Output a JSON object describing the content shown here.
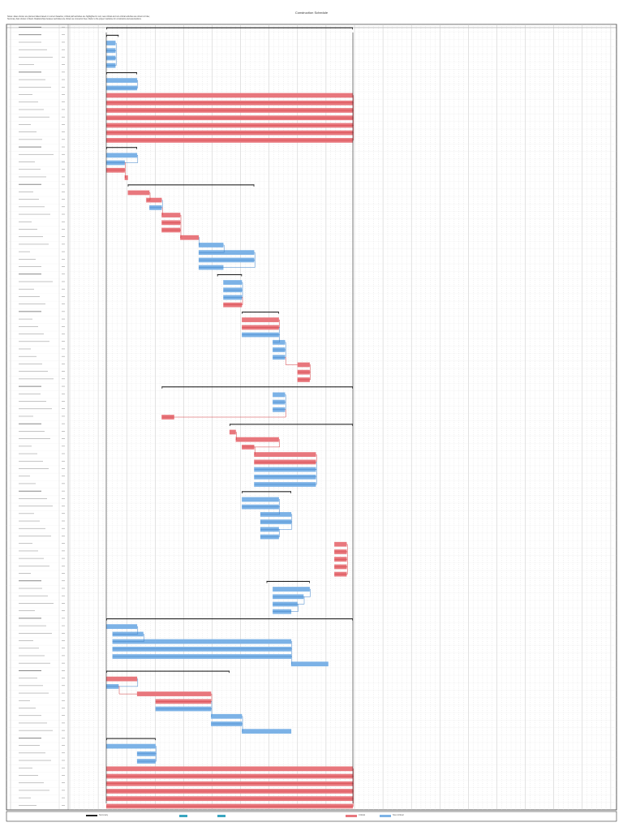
{
  "window": {
    "title": "Construction Schedule",
    "notes_line1": "Notes: dates shown are planned dates based on current baseline; critical path activities are highlighted in red; near-critical and non-critical activities are shown in blue;",
    "notes_line2": "Summary bars shown in black. Relationships between activities are shown as connector lines. Refer to the project narrative for constraints and assumptions."
  },
  "legend": {
    "critical": "Critical",
    "noncritical": "Non-Critical",
    "summary": "Summary"
  },
  "colors": {
    "critical": "#e8777d",
    "critical_line": "#d13a3f",
    "noncritical": "#7cb2e6",
    "noncritical_line": "#3f82c8",
    "summary": "#222222",
    "grid": "#bfbfbf",
    "legend_teal": "#3aa6c0"
  },
  "chart_data": {
    "type": "gantt",
    "tasks": [
      {
        "group": "Project Summary",
        "start": 0,
        "end": 40,
        "kind": "summary"
      },
      {
        "group": "Mobilization",
        "start": 0,
        "end": 2,
        "kind": "summary"
      },
      {
        "group": "Mobilization",
        "start": 0,
        "end": 1.5,
        "kind": "noncritical"
      },
      {
        "group": "Mobilization",
        "start": 0,
        "end": 1.5,
        "kind": "noncritical"
      },
      {
        "group": "Mobilization",
        "start": 0,
        "end": 1.5,
        "kind": "noncritical"
      },
      {
        "group": "Mobilization",
        "start": 0,
        "end": 1.5,
        "kind": "noncritical"
      },
      {
        "group": "Preconstruction",
        "start": 0,
        "end": 5,
        "kind": "summary"
      },
      {
        "group": "Preconstruction",
        "start": 0,
        "end": 5,
        "kind": "noncritical"
      },
      {
        "group": "Preconstruction",
        "start": 0,
        "end": 5,
        "kind": "noncritical"
      },
      {
        "group": "Design",
        "start": 0,
        "end": 40,
        "kind": "critical"
      },
      {
        "group": "Design",
        "start": 0,
        "end": 40,
        "kind": "critical"
      },
      {
        "group": "Design",
        "start": 0,
        "end": 40,
        "kind": "critical"
      },
      {
        "group": "Design",
        "start": 0,
        "end": 40,
        "kind": "critical"
      },
      {
        "group": "Design",
        "start": 0,
        "end": 40,
        "kind": "critical"
      },
      {
        "group": "Design",
        "start": 0,
        "end": 40,
        "kind": "critical"
      },
      {
        "group": "Design",
        "start": 0,
        "end": 40,
        "kind": "critical"
      },
      {
        "group": "Permits",
        "start": 0,
        "end": 5,
        "kind": "summary"
      },
      {
        "group": "Permits",
        "start": 0,
        "end": 5,
        "kind": "noncritical"
      },
      {
        "group": "Permits",
        "start": 0,
        "end": 3,
        "kind": "noncritical"
      },
      {
        "group": "Permits",
        "start": 0,
        "end": 3,
        "kind": "critical"
      },
      {
        "group": "Permits",
        "start": 3,
        "end": 3.5,
        "kind": "critical"
      },
      {
        "group": "Site Work",
        "start": 3.5,
        "end": 24,
        "kind": "summary"
      },
      {
        "group": "Site Work",
        "start": 3.5,
        "end": 7,
        "kind": "critical"
      },
      {
        "group": "Site Work",
        "start": 6.5,
        "end": 9,
        "kind": "critical"
      },
      {
        "group": "Site Work",
        "start": 7,
        "end": 9,
        "kind": "noncritical"
      },
      {
        "group": "Site Work",
        "start": 9,
        "end": 12,
        "kind": "critical"
      },
      {
        "group": "Site Work",
        "start": 9,
        "end": 12,
        "kind": "critical"
      },
      {
        "group": "Site Work",
        "start": 9,
        "end": 12,
        "kind": "critical"
      },
      {
        "group": "Site Work",
        "start": 12,
        "end": 15,
        "kind": "critical"
      },
      {
        "group": "Site Work",
        "start": 15,
        "end": 19,
        "kind": "noncritical"
      },
      {
        "group": "Site Work",
        "start": 15,
        "end": 24,
        "kind": "noncritical"
      },
      {
        "group": "Site Work",
        "start": 15,
        "end": 24,
        "kind": "noncritical"
      },
      {
        "group": "Site Work",
        "start": 15,
        "end": 19,
        "kind": "noncritical"
      },
      {
        "group": "Foundations",
        "start": 18,
        "end": 22,
        "kind": "summary"
      },
      {
        "group": "Foundations",
        "start": 19,
        "end": 22,
        "kind": "noncritical"
      },
      {
        "group": "Foundations",
        "start": 19,
        "end": 22,
        "kind": "noncritical"
      },
      {
        "group": "Foundations",
        "start": 19,
        "end": 22,
        "kind": "noncritical"
      },
      {
        "group": "Foundations",
        "start": 19,
        "end": 22,
        "kind": "critical"
      },
      {
        "group": "Structure",
        "start": 22,
        "end": 28,
        "kind": "summary"
      },
      {
        "group": "Structure",
        "start": 22,
        "end": 28,
        "kind": "critical"
      },
      {
        "group": "Structure",
        "start": 22,
        "end": 28,
        "kind": "critical"
      },
      {
        "group": "Structure",
        "start": 22,
        "end": 28,
        "kind": "noncritical"
      },
      {
        "group": "Structure",
        "start": 27,
        "end": 29,
        "kind": "noncritical"
      },
      {
        "group": "Structure",
        "start": 27,
        "end": 29,
        "kind": "noncritical"
      },
      {
        "group": "Structure",
        "start": 27,
        "end": 29,
        "kind": "noncritical"
      },
      {
        "group": "Structure",
        "start": 31,
        "end": 33,
        "kind": "critical"
      },
      {
        "group": "Structure",
        "start": 31,
        "end": 33,
        "kind": "critical"
      },
      {
        "group": "Structure",
        "start": 31,
        "end": 33,
        "kind": "critical"
      },
      {
        "group": "Envelope",
        "start": 9,
        "end": 40,
        "kind": "summary"
      },
      {
        "group": "Envelope",
        "start": 27,
        "end": 29,
        "kind": "noncritical"
      },
      {
        "group": "Envelope",
        "start": 27,
        "end": 29,
        "kind": "noncritical"
      },
      {
        "group": "Envelope",
        "start": 27,
        "end": 29,
        "kind": "noncritical"
      },
      {
        "group": "Envelope",
        "start": 9,
        "end": 11,
        "kind": "critical"
      },
      {
        "group": "Interiors",
        "start": 20,
        "end": 40,
        "kind": "summary"
      },
      {
        "group": "Interiors",
        "start": 20,
        "end": 21,
        "kind": "critical"
      },
      {
        "group": "Interiors",
        "start": 21,
        "end": 28,
        "kind": "critical"
      },
      {
        "group": "Interiors",
        "start": 22,
        "end": 24,
        "kind": "critical"
      },
      {
        "group": "Interiors",
        "start": 24,
        "end": 34,
        "kind": "critical"
      },
      {
        "group": "Interiors",
        "start": 24,
        "end": 34,
        "kind": "critical"
      },
      {
        "group": "Interiors",
        "start": 24,
        "end": 34,
        "kind": "noncritical"
      },
      {
        "group": "Interiors",
        "start": 24,
        "end": 34,
        "kind": "noncritical"
      },
      {
        "group": "Interiors",
        "start": 24,
        "end": 34,
        "kind": "noncritical"
      },
      {
        "group": "MEP",
        "start": 22,
        "end": 30,
        "kind": "summary"
      },
      {
        "group": "MEP",
        "start": 22,
        "end": 28,
        "kind": "noncritical"
      },
      {
        "group": "MEP",
        "start": 22,
        "end": 28,
        "kind": "noncritical"
      },
      {
        "group": "MEP",
        "start": 25,
        "end": 30,
        "kind": "noncritical"
      },
      {
        "group": "MEP",
        "start": 25,
        "end": 30,
        "kind": "noncritical"
      },
      {
        "group": "MEP",
        "start": 25,
        "end": 28,
        "kind": "noncritical"
      },
      {
        "group": "MEP",
        "start": 25,
        "end": 28,
        "kind": "noncritical"
      },
      {
        "group": "Finishes",
        "start": 37,
        "end": 39,
        "kind": "critical"
      },
      {
        "group": "Finishes",
        "start": 37,
        "end": 39,
        "kind": "critical"
      },
      {
        "group": "Finishes",
        "start": 37,
        "end": 39,
        "kind": "critical"
      },
      {
        "group": "Finishes",
        "start": 37,
        "end": 39,
        "kind": "critical"
      },
      {
        "group": "Finishes",
        "start": 37,
        "end": 39,
        "kind": "critical"
      },
      {
        "group": "Equipment",
        "start": 26,
        "end": 33,
        "kind": "summary"
      },
      {
        "group": "Equipment",
        "start": 27,
        "end": 33,
        "kind": "noncritical"
      },
      {
        "group": "Equipment",
        "start": 27,
        "end": 32,
        "kind": "noncritical"
      },
      {
        "group": "Equipment",
        "start": 27,
        "end": 31,
        "kind": "noncritical"
      },
      {
        "group": "Equipment",
        "start": 27,
        "end": 30,
        "kind": "noncritical"
      },
      {
        "group": "Landscape",
        "start": 0,
        "end": 40,
        "kind": "summary"
      },
      {
        "group": "Landscape",
        "start": 0,
        "end": 5,
        "kind": "noncritical"
      },
      {
        "group": "Landscape",
        "start": 1,
        "end": 6,
        "kind": "noncritical"
      },
      {
        "group": "Landscape",
        "start": 1,
        "end": 30,
        "kind": "noncritical"
      },
      {
        "group": "Landscape",
        "start": 1,
        "end": 30,
        "kind": "noncritical"
      },
      {
        "group": "Landscape",
        "start": 1,
        "end": 30,
        "kind": "noncritical"
      },
      {
        "group": "Landscape",
        "start": 30,
        "end": 36,
        "kind": "noncritical"
      },
      {
        "group": "Closeout",
        "start": 0,
        "end": 20,
        "kind": "summary"
      },
      {
        "group": "Closeout",
        "start": 0,
        "end": 5,
        "kind": "critical"
      },
      {
        "group": "Closeout",
        "start": 0,
        "end": 2,
        "kind": "noncritical"
      },
      {
        "group": "Closeout",
        "start": 5,
        "end": 17,
        "kind": "critical"
      },
      {
        "group": "Closeout",
        "start": 8,
        "end": 17,
        "kind": "critical"
      },
      {
        "group": "Closeout",
        "start": 8,
        "end": 17,
        "kind": "noncritical"
      },
      {
        "group": "Closeout",
        "start": 17,
        "end": 22,
        "kind": "noncritical"
      },
      {
        "group": "Closeout",
        "start": 17,
        "end": 22,
        "kind": "noncritical"
      },
      {
        "group": "Closeout",
        "start": 22,
        "end": 30,
        "kind": "noncritical"
      },
      {
        "group": "Commissioning",
        "start": 0,
        "end": 8,
        "kind": "summary"
      },
      {
        "group": "Commissioning",
        "start": 0,
        "end": 8,
        "kind": "noncritical"
      },
      {
        "group": "Commissioning",
        "start": 5,
        "end": 8,
        "kind": "noncritical"
      },
      {
        "group": "Commissioning",
        "start": 5,
        "end": 8,
        "kind": "noncritical"
      },
      {
        "group": "Turnover",
        "start": 0,
        "end": 40,
        "kind": "critical"
      },
      {
        "group": "Turnover",
        "start": 0,
        "end": 40,
        "kind": "critical"
      },
      {
        "group": "Turnover",
        "start": 0,
        "end": 40,
        "kind": "critical"
      },
      {
        "group": "Turnover",
        "start": 0,
        "end": 40,
        "kind": "critical"
      },
      {
        "group": "Turnover",
        "start": 0,
        "end": 40,
        "kind": "critical"
      },
      {
        "group": "Turnover",
        "start": 0,
        "end": 40,
        "kind": "critical"
      }
    ]
  }
}
